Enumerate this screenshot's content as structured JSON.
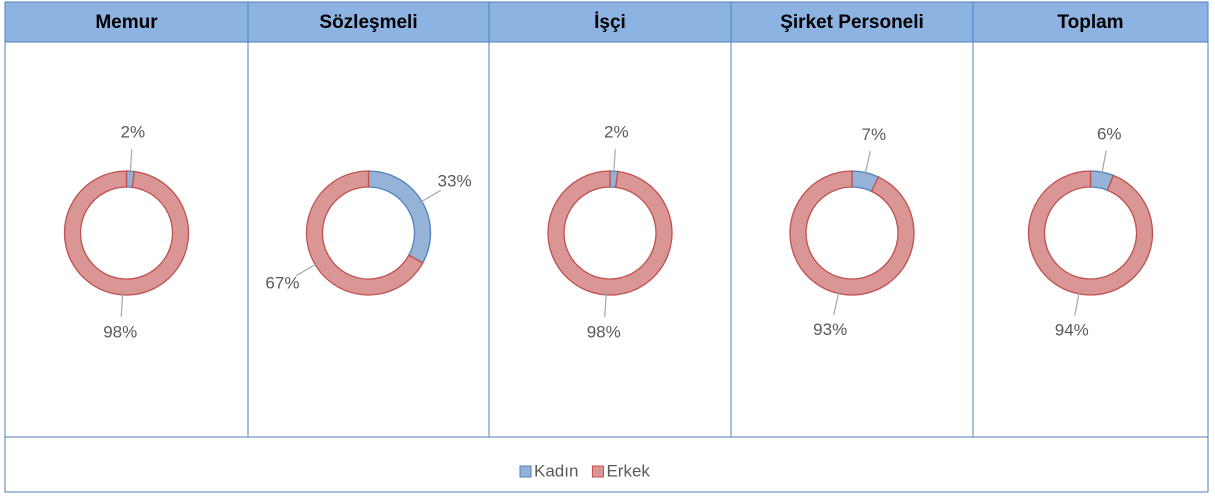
{
  "chart_data": [
    {
      "type": "pie",
      "donut": true,
      "title": "Memur",
      "categories": [
        "Kadın",
        "Erkek"
      ],
      "values": [
        2,
        98
      ],
      "value_labels": [
        "2%",
        "98%"
      ],
      "colors": [
        "#95b3d7",
        "#d99694"
      ],
      "stroke_colors": [
        "#4f81bd",
        "#c0504d"
      ]
    },
    {
      "type": "pie",
      "donut": true,
      "title": "Sözleşmeli",
      "categories": [
        "Kadın",
        "Erkek"
      ],
      "values": [
        33,
        67
      ],
      "value_labels": [
        "33%",
        "67%"
      ],
      "colors": [
        "#95b3d7",
        "#d99694"
      ],
      "stroke_colors": [
        "#4f81bd",
        "#c0504d"
      ]
    },
    {
      "type": "pie",
      "donut": true,
      "title": "İşçi",
      "categories": [
        "Kadın",
        "Erkek"
      ],
      "values": [
        2,
        98
      ],
      "value_labels": [
        "2%",
        "98%"
      ],
      "colors": [
        "#95b3d7",
        "#d99694"
      ],
      "stroke_colors": [
        "#4f81bd",
        "#c0504d"
      ]
    },
    {
      "type": "pie",
      "donut": true,
      "title": "Şirket Personeli",
      "categories": [
        "Kadın",
        "Erkek"
      ],
      "values": [
        7,
        93
      ],
      "value_labels": [
        "7%",
        "93%"
      ],
      "colors": [
        "#95b3d7",
        "#d99694"
      ],
      "stroke_colors": [
        "#4f81bd",
        "#c0504d"
      ]
    },
    {
      "type": "pie",
      "donut": true,
      "title": "Toplam",
      "categories": [
        "Kadın",
        "Erkek"
      ],
      "values": [
        6,
        94
      ],
      "value_labels": [
        "6%",
        "94%"
      ],
      "colors": [
        "#95b3d7",
        "#d99694"
      ],
      "stroke_colors": [
        "#4f81bd",
        "#c0504d"
      ]
    }
  ]
}
